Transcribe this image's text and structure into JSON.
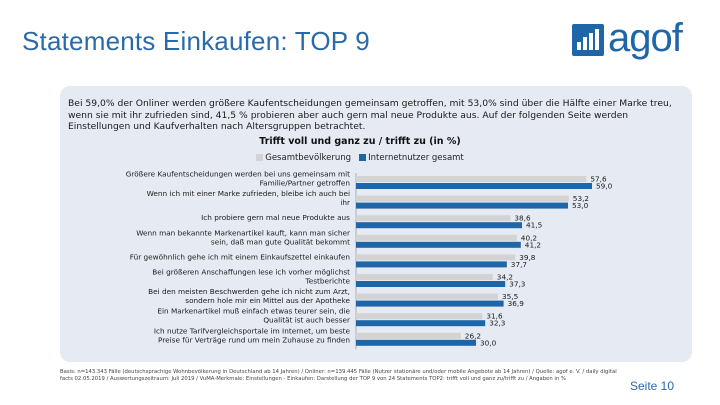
{
  "title": "Statements Einkaufen: TOP 9",
  "logo_text": "agof",
  "intro": "Bei 59,0% der Onliner werden größere Kaufentscheidungen gemeinsam getroffen, mit 53,0% sind über die Hälfte einer Marke treu, wenn sie mit ihr zufrieden sind, 41,5 % probieren aber auch gern mal neue Produkte aus. Auf der folgenden Seite werden Einstellungen und Kaufverhalten nach Altersgruppen betrachtet.",
  "footer": "Basis: n=143.343 Fälle (deutschsprachige Wohnbevölkerung in Deutschland ab 14 Jahren) / Onliner: n=139.445 Fälle (Nutzer stationäre und/oder mobile Angebote ab 14 Jahren) / Quelle: agof e. V. / daily digital facts 02.05.2019 / Auswertungszeitraum: Juli 2019 / VuMA-Merkmale: Einstellungen - Einkaufen: Darstellung der TOP 9 von 24 Statements TOP2: trifft voll und ganz zu/trifft zu / Angaben in %",
  "page_number": "Seite 10",
  "colors": {
    "title": "#2b6aa8",
    "series1": "#d3d3d3",
    "series2": "#1f66a8",
    "panel": "#e5eaf3"
  },
  "chart_data": {
    "type": "bar",
    "orientation": "horizontal",
    "title": "Trifft voll und ganz zu / trifft zu (in %)",
    "categories": [
      "Größere Kaufentscheidungen werden bei uns gemeinsam mit Familie/Partner getroffen",
      "Wenn ich mit einer Marke zufrieden, bleibe ich auch bei ihr",
      "Ich probiere gern mal neue Produkte aus",
      "Wenn man bekannte Markenartikel kauft, kann man sicher sein, daß man gute Qualität bekommt",
      "Für gewöhnlich gehe ich mit einem Einkaufszettel einkaufen",
      "Bei größeren Anschaffungen lese ich vorher möglichst Testberichte",
      "Bei den meisten Beschwerden gehe ich nicht zum Arzt, sondern hole mir ein Mittel aus der Apotheke",
      "Ein Markenartikel muß einfach etwas teurer sein, die Qualität ist auch besser",
      "Ich nutze Tarifvergleichsportale im Internet, um beste Preise für Verträge rund um mein Zuhause zu finden"
    ],
    "series": [
      {
        "name": "Gesamtbevölkerung",
        "values": [
          57.6,
          53.2,
          38.6,
          40.2,
          39.8,
          34.2,
          35.5,
          31.6,
          26.2
        ],
        "labels": [
          "57,6",
          "53,2",
          "38,6",
          "40,2",
          "39,8",
          "34,2",
          "35,5",
          "31,6",
          "26,2"
        ]
      },
      {
        "name": "Internetnutzer gesamt",
        "values": [
          59.0,
          53.0,
          41.5,
          41.2,
          37.7,
          37.3,
          36.9,
          32.3,
          30.0
        ],
        "labels": [
          "59,0",
          "53,0",
          "41,5",
          "41,2",
          "37,7",
          "37,3",
          "36,9",
          "32,3",
          "30,0"
        ]
      }
    ],
    "xlim": [
      0,
      60
    ],
    "unit": "%"
  }
}
